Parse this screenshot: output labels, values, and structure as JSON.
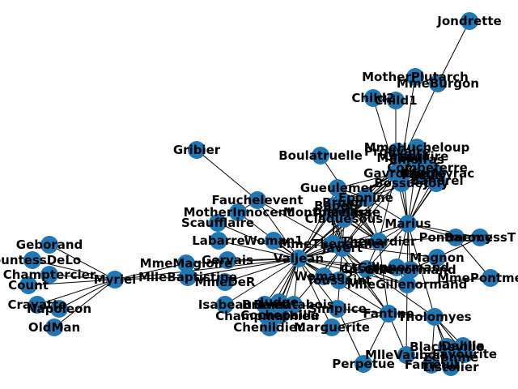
{
  "graph": {
    "node_color": "#1f77b4",
    "edge_color": "#000000",
    "nodes": [
      "Myriel",
      "Napoleon",
      "MlleBaptistine",
      "MmeMagloire",
      "CountessDeLo",
      "Geborand",
      "Champtercier",
      "Cravatte",
      "Count",
      "OldMan",
      "Labarre",
      "Valjean",
      "Marguerite",
      "MmeDeR",
      "Isabeau",
      "Gervais",
      "Tholomyes",
      "Listolier",
      "Fameuil",
      "Blacheville",
      "Favourite",
      "Dahlia",
      "Zephine",
      "Fantine",
      "MmeThenardier",
      "Thenardier",
      "Cosette",
      "Javert",
      "Fauchelevent",
      "Bamatabois",
      "Perpetue",
      "Simplice",
      "Scaufflaire",
      "Woman1",
      "Judge",
      "Champmathieu",
      "Brevet",
      "Chenildieu",
      "Cochepaille",
      "Pontmercy",
      "Boulatruelle",
      "Eponine",
      "Anzelma",
      "Woman2",
      "MotherInnocent",
      "Gribier",
      "Jondrette",
      "MmeBurgon",
      "Gavroche",
      "Gillenormand",
      "Magnon",
      "MlleGillenormand",
      "MmePontmercy",
      "MlleVaubois",
      "LtGillenormand",
      "Marius",
      "BaronessT",
      "Mabeuf",
      "Enjolras",
      "Combeferre",
      "Prouvaire",
      "Feuilly",
      "Courfeyrac",
      "Bahorel",
      "Bossuet",
      "Joly",
      "Grantaire",
      "MotherPlutarch",
      "Gueulemer",
      "Babet",
      "Claquesous",
      "Montparnasse",
      "Toussaint",
      "Child1",
      "Child2",
      "Brujon",
      "MmeHucheloup"
    ],
    "edges": [
      [
        "Napoleon",
        "Myriel"
      ],
      [
        "MlleBaptistine",
        "Myriel"
      ],
      [
        "MmeMagloire",
        "Myriel"
      ],
      [
        "CountessDeLo",
        "Myriel"
      ],
      [
        "Geborand",
        "Myriel"
      ],
      [
        "Champtercier",
        "Myriel"
      ],
      [
        "Cravatte",
        "Myriel"
      ],
      [
        "Count",
        "Myriel"
      ],
      [
        "OldMan",
        "Myriel"
      ],
      [
        "Valjean",
        "Myriel"
      ],
      [
        "Valjean",
        "Labarre"
      ],
      [
        "Valjean",
        "MmeMagloire"
      ],
      [
        "Valjean",
        "MlleBaptistine"
      ],
      [
        "Valjean",
        "Marguerite"
      ],
      [
        "Valjean",
        "MmeDeR"
      ],
      [
        "Valjean",
        "Isabeau"
      ],
      [
        "Valjean",
        "Gervais"
      ],
      [
        "Listolier",
        "Tholomyes"
      ],
      [
        "Fameuil",
        "Tholomyes"
      ],
      [
        "Blacheville",
        "Tholomyes"
      ],
      [
        "Favourite",
        "Tholomyes"
      ],
      [
        "Dahlia",
        "Tholomyes"
      ],
      [
        "Zephine",
        "Tholomyes"
      ],
      [
        "Fantine",
        "Tholomyes"
      ],
      [
        "Fantine",
        "Valjean"
      ],
      [
        "Fantine",
        "Marguerite"
      ],
      [
        "Fantine",
        "Perpetue"
      ],
      [
        "Fantine",
        "Simplice"
      ],
      [
        "Fantine",
        "Javert"
      ],
      [
        "Fantine",
        "MlleVaubois"
      ],
      [
        "MmeThenardier",
        "Fantine"
      ],
      [
        "MmeThenardier",
        "Valjean"
      ],
      [
        "Thenardier",
        "MmeThenardier"
      ],
      [
        "Thenardier",
        "Fantine"
      ],
      [
        "Thenardier",
        "Valjean"
      ],
      [
        "Cosette",
        "MmeThenardier"
      ],
      [
        "Cosette",
        "Valjean"
      ],
      [
        "Cosette",
        "Tholomyes"
      ],
      [
        "Cosette",
        "Thenardier"
      ],
      [
        "Javert",
        "Valjean"
      ],
      [
        "Javert",
        "Thenardier"
      ],
      [
        "Javert",
        "MmeThenardier"
      ],
      [
        "Javert",
        "Cosette"
      ],
      [
        "Fauchelevent",
        "Valjean"
      ],
      [
        "Fauchelevent",
        "Javert"
      ],
      [
        "Bamatabois",
        "Fantine"
      ],
      [
        "Bamatabois",
        "Javert"
      ],
      [
        "Bamatabois",
        "Valjean"
      ],
      [
        "Simplice",
        "Perpetue"
      ],
      [
        "Simplice",
        "Valjean"
      ],
      [
        "Simplice",
        "Javert"
      ],
      [
        "Scaufflaire",
        "Valjean"
      ],
      [
        "Woman1",
        "Valjean"
      ],
      [
        "Woman1",
        "Javert"
      ],
      [
        "Judge",
        "Valjean"
      ],
      [
        "Judge",
        "Bamatabois"
      ],
      [
        "Champmathieu",
        "Valjean"
      ],
      [
        "Champmathieu",
        "Judge"
      ],
      [
        "Champmathieu",
        "Bamatabois"
      ],
      [
        "Brevet",
        "Judge"
      ],
      [
        "Brevet",
        "Champmathieu"
      ],
      [
        "Brevet",
        "Valjean"
      ],
      [
        "Brevet",
        "Bamatabois"
      ],
      [
        "Chenildieu",
        "Judge"
      ],
      [
        "Chenildieu",
        "Champmathieu"
      ],
      [
        "Chenildieu",
        "Brevet"
      ],
      [
        "Chenildieu",
        "Valjean"
      ],
      [
        "Chenildieu",
        "Bamatabois"
      ],
      [
        "Cochepaille",
        "Judge"
      ],
      [
        "Cochepaille",
        "Champmathieu"
      ],
      [
        "Cochepaille",
        "Brevet"
      ],
      [
        "Cochepaille",
        "Chenildieu"
      ],
      [
        "Cochepaille",
        "Valjean"
      ],
      [
        "Cochepaille",
        "Bamatabois"
      ],
      [
        "Pontmercy",
        "Thenardier"
      ],
      [
        "Boulatruelle",
        "Thenardier"
      ],
      [
        "Eponine",
        "MmeThenardier"
      ],
      [
        "Eponine",
        "Thenardier"
      ],
      [
        "Anzelma",
        "Eponine"
      ],
      [
        "Anzelma",
        "Thenardier"
      ],
      [
        "Anzelma",
        "MmeThenardier"
      ],
      [
        "Woman2",
        "Valjean"
      ],
      [
        "Woman2",
        "Cosette"
      ],
      [
        "Woman2",
        "Javert"
      ],
      [
        "MotherInnocent",
        "Fauchelevent"
      ],
      [
        "MotherInnocent",
        "Valjean"
      ],
      [
        "Gribier",
        "Fauchelevent"
      ],
      [
        "MmeBurgon",
        "Jondrette"
      ],
      [
        "Gavroche",
        "MmeBurgon"
      ],
      [
        "Gavroche",
        "Thenardier"
      ],
      [
        "Gavroche",
        "Javert"
      ],
      [
        "Gavroche",
        "Valjean"
      ],
      [
        "Gillenormand",
        "Cosette"
      ],
      [
        "Gillenormand",
        "Valjean"
      ],
      [
        "Magnon",
        "Gillenormand"
      ],
      [
        "Magnon",
        "MmeThenardier"
      ],
      [
        "MlleGillenormand",
        "Gillenormand"
      ],
      [
        "MlleGillenormand",
        "Cosette"
      ],
      [
        "MlleGillenormand",
        "Valjean"
      ],
      [
        "MmePontmercy",
        "MlleGillenormand"
      ],
      [
        "MmePontmercy",
        "Pontmercy"
      ],
      [
        "MlleVaubois",
        "MlleGillenormand"
      ],
      [
        "LtGillenormand",
        "MlleGillenormand"
      ],
      [
        "LtGillenormand",
        "Gillenormand"
      ],
      [
        "LtGillenormand",
        "Cosette"
      ],
      [
        "Marius",
        "MlleGillenormand"
      ],
      [
        "Marius",
        "Gillenormand"
      ],
      [
        "Marius",
        "Pontmercy"
      ],
      [
        "Marius",
        "LtGillenormand"
      ],
      [
        "Marius",
        "Cosette"
      ],
      [
        "Marius",
        "Valjean"
      ],
      [
        "Marius",
        "Tholomyes"
      ],
      [
        "Marius",
        "Thenardier"
      ],
      [
        "Marius",
        "Eponine"
      ],
      [
        "Marius",
        "Gavroche"
      ],
      [
        "BaronessT",
        "Gillenormand"
      ],
      [
        "BaronessT",
        "Marius"
      ],
      [
        "Mabeuf",
        "Marius"
      ],
      [
        "Mabeuf",
        "Eponine"
      ],
      [
        "Mabeuf",
        "Gavroche"
      ],
      [
        "Enjolras",
        "Marius"
      ],
      [
        "Enjolras",
        "Gavroche"
      ],
      [
        "Enjolras",
        "Javert"
      ],
      [
        "Enjolras",
        "Mabeuf"
      ],
      [
        "Enjolras",
        "Valjean"
      ],
      [
        "Combeferre",
        "Enjolras"
      ],
      [
        "Combeferre",
        "Marius"
      ],
      [
        "Combeferre",
        "Gavroche"
      ],
      [
        "Combeferre",
        "Mabeuf"
      ],
      [
        "Prouvaire",
        "Gavroche"
      ],
      [
        "Prouvaire",
        "Enjolras"
      ],
      [
        "Prouvaire",
        "Combeferre"
      ],
      [
        "Feuilly",
        "Gavroche"
      ],
      [
        "Feuilly",
        "Enjolras"
      ],
      [
        "Feuilly",
        "Prouvaire"
      ],
      [
        "Feuilly",
        "Combeferre"
      ],
      [
        "Feuilly",
        "Mabeuf"
      ],
      [
        "Feuilly",
        "Marius"
      ],
      [
        "Courfeyrac",
        "Marius"
      ],
      [
        "Courfeyrac",
        "Enjolras"
      ],
      [
        "Courfeyrac",
        "Combeferre"
      ],
      [
        "Courfeyrac",
        "Gavroche"
      ],
      [
        "Courfeyrac",
        "Mabeuf"
      ],
      [
        "Courfeyrac",
        "Eponine"
      ],
      [
        "Courfeyrac",
        "Feuilly"
      ],
      [
        "Courfeyrac",
        "Prouvaire"
      ],
      [
        "Bahorel",
        "Combeferre"
      ],
      [
        "Bahorel",
        "Gavroche"
      ],
      [
        "Bahorel",
        "Courfeyrac"
      ],
      [
        "Bahorel",
        "Mabeuf"
      ],
      [
        "Bahorel",
        "Enjolras"
      ],
      [
        "Bahorel",
        "Feuilly"
      ],
      [
        "Bahorel",
        "Prouvaire"
      ],
      [
        "Bahorel",
        "Marius"
      ],
      [
        "Bossuet",
        "Marius"
      ],
      [
        "Bossuet",
        "Courfeyrac"
      ],
      [
        "Bossuet",
        "Gavroche"
      ],
      [
        "Bossuet",
        "Bahorel"
      ],
      [
        "Bossuet",
        "Enjolras"
      ],
      [
        "Bossuet",
        "Feuilly"
      ],
      [
        "Bossuet",
        "Prouvaire"
      ],
      [
        "Bossuet",
        "Combeferre"
      ],
      [
        "Bossuet",
        "Mabeuf"
      ],
      [
        "Bossuet",
        "Valjean"
      ],
      [
        "Joly",
        "Bahorel"
      ],
      [
        "Joly",
        "Bossuet"
      ],
      [
        "Joly",
        "Gavroche"
      ],
      [
        "Joly",
        "Courfeyrac"
      ],
      [
        "Joly",
        "Enjolras"
      ],
      [
        "Joly",
        "Feuilly"
      ],
      [
        "Joly",
        "Prouvaire"
      ],
      [
        "Joly",
        "Combeferre"
      ],
      [
        "Joly",
        "Mabeuf"
      ],
      [
        "Joly",
        "Marius"
      ],
      [
        "Grantaire",
        "Bossuet"
      ],
      [
        "Grantaire",
        "Enjolras"
      ],
      [
        "Grantaire",
        "Combeferre"
      ],
      [
        "Grantaire",
        "Courfeyrac"
      ],
      [
        "Grantaire",
        "Joly"
      ],
      [
        "Grantaire",
        "Gavroche"
      ],
      [
        "Grantaire",
        "Bahorel"
      ],
      [
        "Grantaire",
        "Feuilly"
      ],
      [
        "Grantaire",
        "Prouvaire"
      ],
      [
        "MotherPlutarch",
        "Mabeuf"
      ],
      [
        "Gueulemer",
        "Thenardier"
      ],
      [
        "Gueulemer",
        "Valjean"
      ],
      [
        "Gueulemer",
        "MmeThenardier"
      ],
      [
        "Gueulemer",
        "Javert"
      ],
      [
        "Gueulemer",
        "Gavroche"
      ],
      [
        "Gueulemer",
        "Eponine"
      ],
      [
        "Babet",
        "Thenardier"
      ],
      [
        "Babet",
        "Gueulemer"
      ],
      [
        "Babet",
        "Valjean"
      ],
      [
        "Babet",
        "MmeThenardier"
      ],
      [
        "Babet",
        "Javert"
      ],
      [
        "Babet",
        "Gavroche"
      ],
      [
        "Babet",
        "Eponine"
      ],
      [
        "Claquesous",
        "Thenardier"
      ],
      [
        "Claquesous",
        "Babet"
      ],
      [
        "Claquesous",
        "Gueulemer"
      ],
      [
        "Claquesous",
        "Valjean"
      ],
      [
        "Claquesous",
        "MmeThenardier"
      ],
      [
        "Claquesous",
        "Javert"
      ],
      [
        "Claquesous",
        "Eponine"
      ],
      [
        "Claquesous",
        "Enjolras"
      ],
      [
        "Montparnasse",
        "Javert"
      ],
      [
        "Montparnasse",
        "Babet"
      ],
      [
        "Montparnasse",
        "Gueulemer"
      ],
      [
        "Montparnasse",
        "Claquesous"
      ],
      [
        "Montparnasse",
        "Valjean"
      ],
      [
        "Montparnasse",
        "Gavroche"
      ],
      [
        "Montparnasse",
        "Eponine"
      ],
      [
        "Montparnasse",
        "Thenardier"
      ],
      [
        "Toussaint",
        "Cosette"
      ],
      [
        "Toussaint",
        "Javert"
      ],
      [
        "Toussaint",
        "Valjean"
      ],
      [
        "Child1",
        "Gavroche"
      ],
      [
        "Child2",
        "Gavroche"
      ],
      [
        "Child2",
        "Child1"
      ],
      [
        "Brujon",
        "Babet"
      ],
      [
        "Brujon",
        "Gueulemer"
      ],
      [
        "Brujon",
        "Thenardier"
      ],
      [
        "Brujon",
        "Gavroche"
      ],
      [
        "Brujon",
        "Eponine"
      ],
      [
        "Brujon",
        "Claquesous"
      ],
      [
        "Brujon",
        "Montparnasse"
      ],
      [
        "MmeHucheloup",
        "Bossuet"
      ],
      [
        "MmeHucheloup",
        "Joly"
      ],
      [
        "MmeHucheloup",
        "Grantaire"
      ],
      [
        "MmeHucheloup",
        "Bahorel"
      ],
      [
        "MmeHucheloup",
        "Courfeyrac"
      ],
      [
        "MmeHucheloup",
        "Gavroche"
      ],
      [
        "MmeHucheloup",
        "Enjolras"
      ]
    ]
  }
}
